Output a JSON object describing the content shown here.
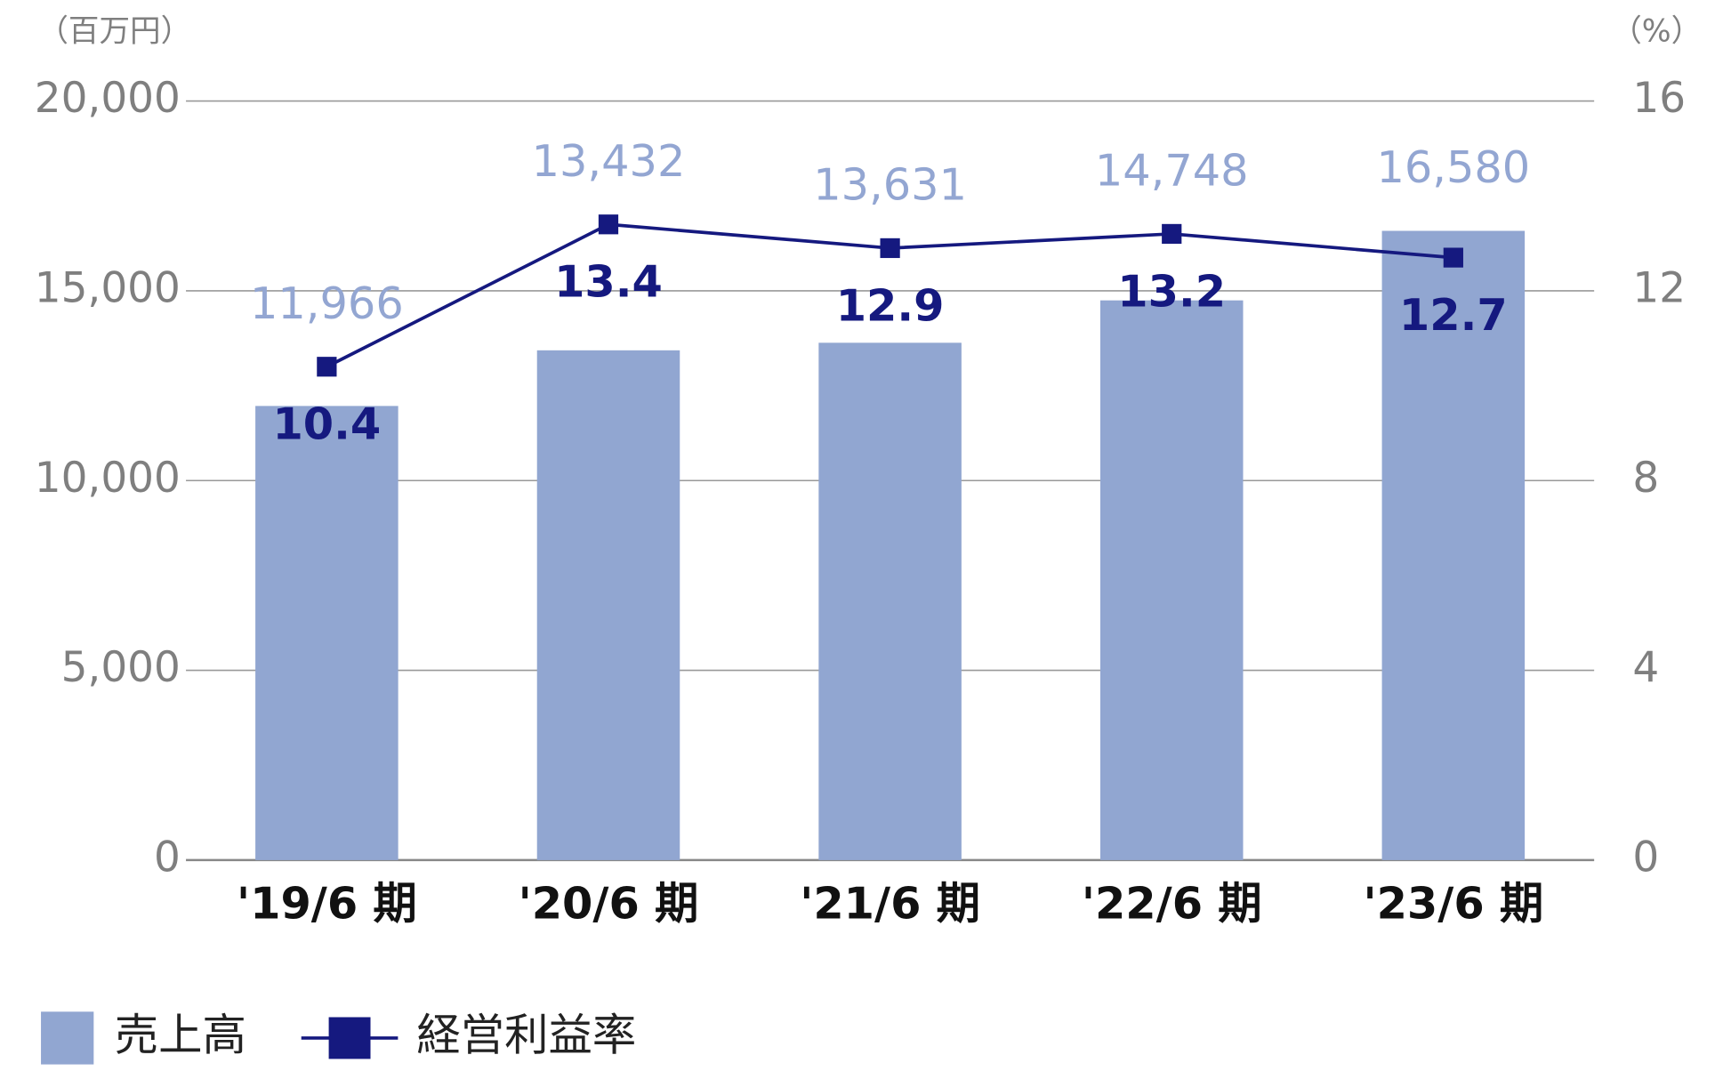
{
  "chart_data": {
    "type": "bar_line",
    "y_unit": "（百万円）",
    "y2_unit": "（%）",
    "categories": [
      "'19/6 期",
      "'20/6 期",
      "'21/6 期",
      "'22/6 期",
      "'23/6 期"
    ],
    "series": [
      {
        "name": "売上高",
        "type": "bar",
        "color": "#91a6d1",
        "values": [
          11966,
          13432,
          13631,
          14748,
          16580
        ],
        "value_labels": [
          "11,966",
          "13,432",
          "13,631",
          "14,748",
          "16,580"
        ]
      },
      {
        "name": "経営利益率",
        "type": "line",
        "axis": "y2",
        "color": "#15197f",
        "values": [
          10.4,
          13.4,
          12.9,
          13.2,
          12.7
        ]
      }
    ],
    "ylim": [
      0,
      20000
    ],
    "yticks": [
      0,
      {
        "value": 5000,
        "label": "5,000"
      },
      {
        "value": 10000,
        "label": "10,000"
      },
      {
        "value": 15000,
        "label": "15,000"
      },
      {
        "value": 20000,
        "label": "20,000"
      }
    ],
    "y2lim": [
      0,
      16
    ],
    "y2ticks": [
      0,
      4,
      8,
      12,
      16
    ],
    "grid": true,
    "legend": "bottom-left"
  }
}
